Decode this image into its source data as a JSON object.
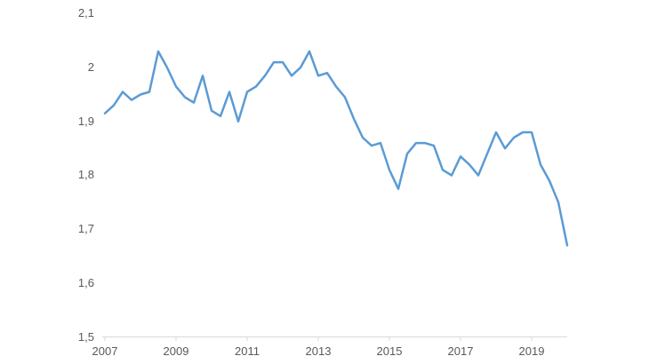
{
  "chart_data": {
    "type": "line",
    "title": "",
    "legend": "none",
    "grid": "off",
    "x_period": "quarterly",
    "x_range_labels": [
      "2007",
      "2020"
    ],
    "ylim": [
      1.5,
      2.1
    ],
    "line_color": "#5B9BD5",
    "axis_color": "#D9D9D9",
    "label_color": "#595959",
    "y_ticks": [
      {
        "label": "2,1",
        "value": 2.1
      },
      {
        "label": "2",
        "value": 2.0
      },
      {
        "label": "1,9",
        "value": 1.9
      },
      {
        "label": "1,8",
        "value": 1.8
      },
      {
        "label": "1,7",
        "value": 1.7
      },
      {
        "label": "1,6",
        "value": 1.6
      },
      {
        "label": "1,5",
        "value": 1.5
      }
    ],
    "x_ticks": [
      {
        "label": "2007",
        "index": 0
      },
      {
        "label": "2009",
        "index": 8
      },
      {
        "label": "2011",
        "index": 16
      },
      {
        "label": "2013",
        "index": 24
      },
      {
        "label": "2015",
        "index": 32
      },
      {
        "label": "2017",
        "index": 40
      },
      {
        "label": "2019",
        "index": 48
      }
    ],
    "series": [
      {
        "name": "",
        "start": "2007 Q1",
        "end": "2020 Q1",
        "values": [
          1.915,
          1.93,
          1.955,
          1.94,
          1.95,
          1.955,
          2.03,
          2.0,
          1.965,
          1.945,
          1.935,
          1.985,
          1.92,
          1.91,
          1.955,
          1.9,
          1.955,
          1.965,
          1.985,
          2.01,
          2.01,
          1.985,
          2.0,
          2.03,
          1.985,
          1.99,
          1.965,
          1.945,
          1.905,
          1.87,
          1.855,
          1.86,
          1.81,
          1.775,
          1.84,
          1.86,
          1.86,
          1.855,
          1.81,
          1.8,
          1.835,
          1.82,
          1.8,
          1.84,
          1.88,
          1.85,
          1.87,
          1.88,
          1.88,
          1.82,
          1.79,
          1.75,
          1.67
        ]
      }
    ]
  }
}
